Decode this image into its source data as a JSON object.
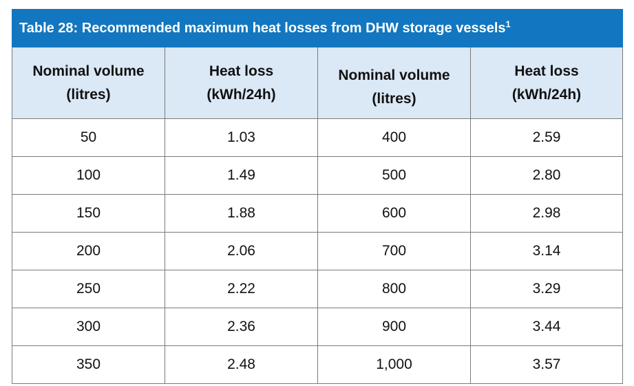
{
  "table": {
    "title": "Table 28: Recommended maximum heat losses from DHW storage vessels",
    "title_footnote": "1",
    "headers": [
      {
        "line1": "Nominal volume",
        "line2": "(litres)"
      },
      {
        "line1": "Heat loss",
        "line2": "(kWh/24h)"
      },
      {
        "line1": "Nominal volume",
        "line2": "(litres)"
      },
      {
        "line1": "Heat loss",
        "line2": "(kWh/24h)"
      }
    ],
    "rows": [
      [
        "50",
        "1.03",
        "400",
        "2.59"
      ],
      [
        "100",
        "1.49",
        "500",
        "2.80"
      ],
      [
        "150",
        "1.88",
        "600",
        "2.98"
      ],
      [
        "200",
        "2.06",
        "700",
        "3.14"
      ],
      [
        "250",
        "2.22",
        "800",
        "3.29"
      ],
      [
        "300",
        "2.36",
        "900",
        "3.44"
      ],
      [
        "350",
        "2.48",
        "1,000",
        "3.57"
      ]
    ],
    "colors": {
      "title_bg": "#1277c0",
      "header_bg": "#dbe8f5",
      "border": "#7a7a7a"
    }
  }
}
